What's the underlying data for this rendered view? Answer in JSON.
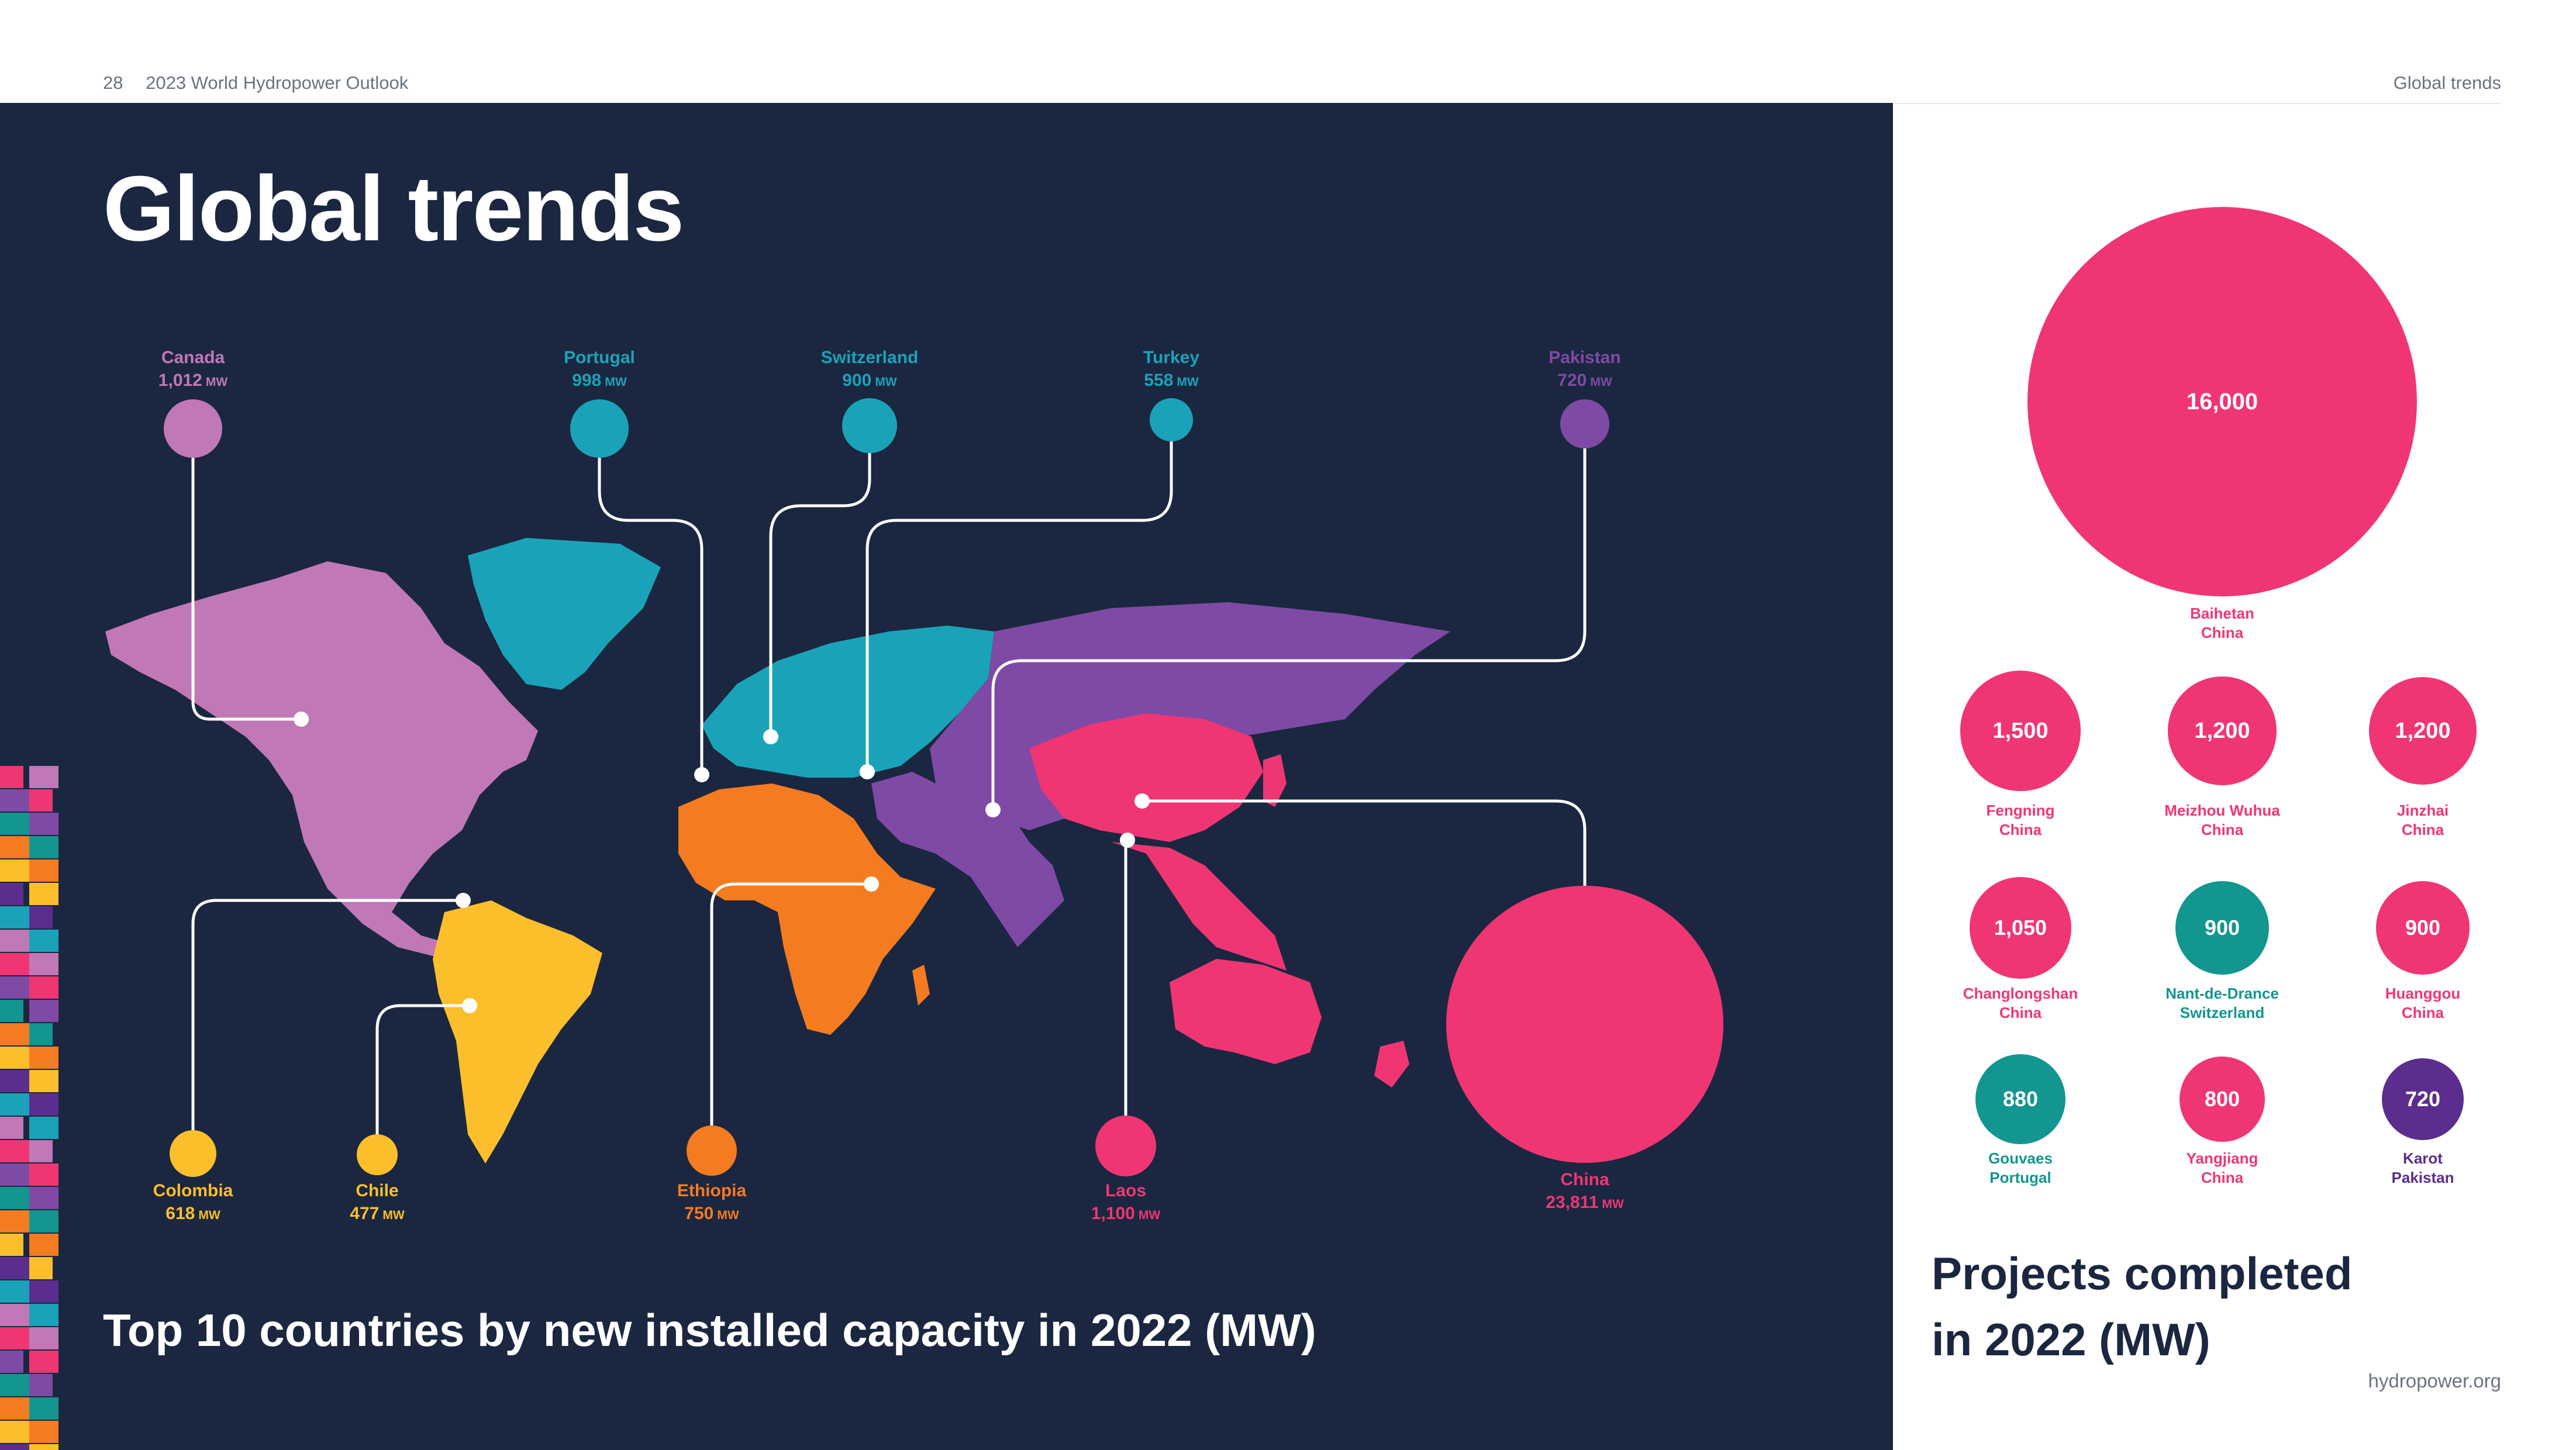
{
  "header": {
    "page_number": "28",
    "publication": "2023 World Hydropower Outlook",
    "section": "Global trends"
  },
  "title": "Global trends",
  "map_title": "Top 10 countries by new installed capacity in 2022 (MW)",
  "unit": "MW",
  "countries": [
    {
      "name": "Canada",
      "value": "1,012",
      "color": "#c078b7"
    },
    {
      "name": "Portugal",
      "value": "998",
      "color": "#1aa3b8"
    },
    {
      "name": "Switzerland",
      "value": "900",
      "color": "#1aa3b8"
    },
    {
      "name": "Turkey",
      "value": "558",
      "color": "#1aa3b8"
    },
    {
      "name": "Pakistan",
      "value": "720",
      "color": "#7e4aa5"
    },
    {
      "name": "Colombia",
      "value": "618",
      "color": "#fbbf2b"
    },
    {
      "name": "Chile",
      "value": "477",
      "color": "#fbbf2b"
    },
    {
      "name": "Ethiopia",
      "value": "750",
      "color": "#f47b20"
    },
    {
      "name": "Laos",
      "value": "1,100",
      "color": "#ef3673"
    },
    {
      "name": "China",
      "value": "23,811",
      "color": "#ef3673"
    }
  ],
  "projects_title_line1": "Projects completed",
  "projects_title_line2": "in 2022 (MW)",
  "projects": [
    {
      "value": "16,000",
      "name": "Baihetan",
      "country": "China",
      "color": "#ef3673"
    },
    {
      "value": "1,500",
      "name": "Fengning",
      "country": "China",
      "color": "#ef3673"
    },
    {
      "value": "1,200",
      "name": "Meizhou Wuhua",
      "country": "China",
      "color": "#ef3673"
    },
    {
      "value": "1,200",
      "name": "Jinzhai",
      "country": "China",
      "color": "#ef3673"
    },
    {
      "value": "1,050",
      "name": "Changlongshan",
      "country": "China",
      "color": "#ef3673"
    },
    {
      "value": "900",
      "name": "Nant-de-Drance",
      "country": "Switzerland",
      "color": "#12968f"
    },
    {
      "value": "900",
      "name": "Huanggou",
      "country": "China",
      "color": "#ef3673"
    },
    {
      "value": "880",
      "name": "Gouvaes",
      "country": "Portugal",
      "color": "#12968f"
    },
    {
      "value": "800",
      "name": "Yangjiang",
      "country": "China",
      "color": "#ef3673"
    },
    {
      "value": "720",
      "name": "Karot",
      "country": "Pakistan",
      "color": "#5b2d8e"
    }
  ],
  "footer": "hydropower.org"
}
